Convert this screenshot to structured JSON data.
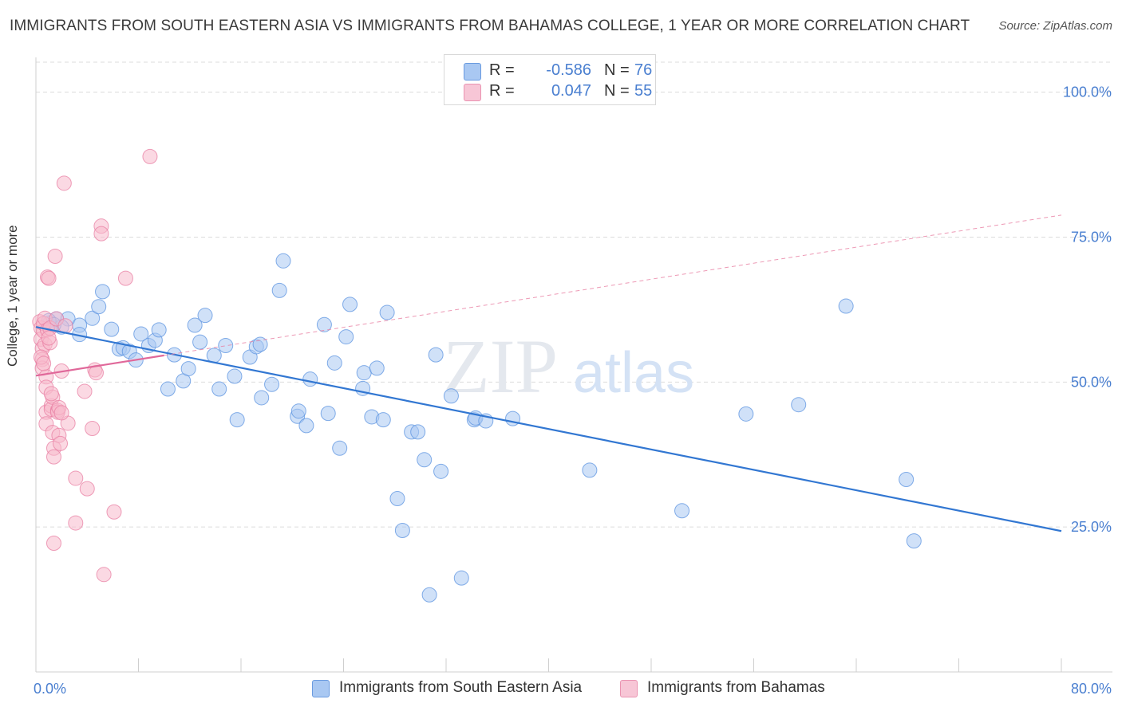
{
  "title": "IMMIGRANTS FROM SOUTH EASTERN ASIA VS IMMIGRANTS FROM BAHAMAS COLLEGE, 1 YEAR OR MORE CORRELATION CHART",
  "source": "Source: ZipAtlas.com",
  "watermark": {
    "zip": "ZIP",
    "atlas": "atlas"
  },
  "legend_top": {
    "rows": [
      {
        "r_label": "R =",
        "r_value": "-0.586",
        "n_label": "N =",
        "n_value": "76",
        "color": "#a9c8f2"
      },
      {
        "r_label": "R =",
        "r_value": "0.047",
        "n_label": "N =",
        "n_value": "55",
        "color": "#f7b9cc"
      }
    ]
  },
  "legend_bottom": [
    {
      "label": "Immigrants from South Eastern Asia",
      "color": "#a9c8f2"
    },
    {
      "label": "Immigrants from Bahamas",
      "color": "#f7b9cc"
    }
  ],
  "chart_data": {
    "type": "scatter",
    "title": "IMMIGRANTS FROM SOUTH EASTERN ASIA VS IMMIGRANTS FROM BAHAMAS COLLEGE, 1 YEAR OR MORE CORRELATION CHART",
    "xlabel": "",
    "ylabel": "College, 1 year or more",
    "xlim": [
      0,
      80
    ],
    "ylim": [
      0,
      106
    ],
    "x_tick_labels": [
      "0.0%",
      "80.0%"
    ],
    "y_ticks": [
      25,
      50,
      75,
      100
    ],
    "y_tick_labels": [
      "25.0%",
      "50.0%",
      "75.0%",
      "100.0%"
    ],
    "grid": true,
    "legend_placement": "top-center",
    "series": [
      {
        "name": "Immigrants from South Eastern Asia",
        "color": "#5b93e0",
        "fill": "#a9c8f2",
        "points": [
          [
            1.1,
            60.2
          ],
          [
            1.6,
            60.9
          ],
          [
            2.5,
            60.9
          ],
          [
            2.0,
            59.5
          ],
          [
            3.4,
            59.8
          ],
          [
            3.4,
            58.2
          ],
          [
            4.4,
            61.0
          ],
          [
            4.9,
            63.0
          ],
          [
            5.2,
            65.6
          ],
          [
            5.9,
            59.1
          ],
          [
            6.5,
            55.7
          ],
          [
            6.8,
            55.9
          ],
          [
            7.3,
            55.3
          ],
          [
            7.8,
            53.8
          ],
          [
            8.2,
            58.3
          ],
          [
            8.8,
            56.3
          ],
          [
            9.3,
            57.2
          ],
          [
            9.6,
            59.0
          ],
          [
            10.3,
            48.8
          ],
          [
            10.8,
            54.7
          ],
          [
            11.5,
            50.2
          ],
          [
            11.9,
            52.3
          ],
          [
            12.4,
            59.8
          ],
          [
            12.8,
            56.9
          ],
          [
            13.2,
            61.5
          ],
          [
            13.9,
            54.6
          ],
          [
            14.3,
            48.8
          ],
          [
            14.8,
            56.3
          ],
          [
            15.5,
            51.0
          ],
          [
            15.7,
            43.5
          ],
          [
            16.7,
            54.3
          ],
          [
            17.2,
            56.1
          ],
          [
            17.5,
            56.5
          ],
          [
            17.6,
            47.3
          ],
          [
            18.4,
            49.6
          ],
          [
            19.0,
            65.8
          ],
          [
            19.3,
            70.9
          ],
          [
            20.4,
            44.1
          ],
          [
            20.5,
            45.0
          ],
          [
            21.1,
            42.5
          ],
          [
            21.4,
            50.5
          ],
          [
            22.5,
            59.9
          ],
          [
            22.8,
            44.6
          ],
          [
            23.3,
            53.3
          ],
          [
            23.7,
            38.6
          ],
          [
            24.2,
            57.8
          ],
          [
            24.5,
            63.4
          ],
          [
            25.5,
            48.9
          ],
          [
            25.6,
            51.6
          ],
          [
            26.2,
            44.0
          ],
          [
            26.6,
            52.4
          ],
          [
            27.1,
            43.5
          ],
          [
            27.4,
            62.0
          ],
          [
            28.2,
            29.9
          ],
          [
            28.6,
            24.4
          ],
          [
            29.3,
            41.4
          ],
          [
            29.8,
            41.4
          ],
          [
            30.3,
            36.6
          ],
          [
            30.7,
            13.3
          ],
          [
            31.2,
            54.7
          ],
          [
            31.6,
            34.6
          ],
          [
            32.4,
            47.6
          ],
          [
            33.2,
            16.2
          ],
          [
            34.2,
            43.5
          ],
          [
            34.3,
            43.8
          ],
          [
            35.1,
            43.3
          ],
          [
            37.2,
            43.7
          ],
          [
            43.2,
            34.8
          ],
          [
            50.4,
            27.8
          ],
          [
            55.4,
            44.5
          ],
          [
            59.5,
            46.1
          ],
          [
            63.2,
            63.1
          ],
          [
            67.9,
            33.2
          ],
          [
            68.5,
            22.6
          ],
          [
            1.0,
            60.6
          ],
          [
            1.4,
            59.9
          ]
        ],
        "trend": {
          "x": [
            0,
            80
          ],
          "y": [
            59.5,
            24.3
          ]
        }
      },
      {
        "name": "Immigrants from Bahamas",
        "color": "#e87fa3",
        "fill": "#f7b9cc",
        "points": [
          [
            0.3,
            60.4
          ],
          [
            0.4,
            59.3
          ],
          [
            0.4,
            57.4
          ],
          [
            0.5,
            55.8
          ],
          [
            0.5,
            53.9
          ],
          [
            0.5,
            52.4
          ],
          [
            0.6,
            58.8
          ],
          [
            0.6,
            60.1
          ],
          [
            0.7,
            61.0
          ],
          [
            0.7,
            56.5
          ],
          [
            0.8,
            50.9
          ],
          [
            0.8,
            49.1
          ],
          [
            0.8,
            44.8
          ],
          [
            0.8,
            42.8
          ],
          [
            0.9,
            59.0
          ],
          [
            0.9,
            68.1
          ],
          [
            1.0,
            67.9
          ],
          [
            1.1,
            59.3
          ],
          [
            1.1,
            56.8
          ],
          [
            1.2,
            45.9
          ],
          [
            1.2,
            45.3
          ],
          [
            1.3,
            47.4
          ],
          [
            1.3,
            41.3
          ],
          [
            1.4,
            38.6
          ],
          [
            1.4,
            37.1
          ],
          [
            1.4,
            22.2
          ],
          [
            1.5,
            71.7
          ],
          [
            1.6,
            60.9
          ],
          [
            1.7,
            45.1
          ],
          [
            1.7,
            44.8
          ],
          [
            1.8,
            45.6
          ],
          [
            1.8,
            40.8
          ],
          [
            1.9,
            39.4
          ],
          [
            2.0,
            51.9
          ],
          [
            2.3,
            59.7
          ],
          [
            2.5,
            42.9
          ],
          [
            2.2,
            84.3
          ],
          [
            3.1,
            33.4
          ],
          [
            3.1,
            25.7
          ],
          [
            3.8,
            48.4
          ],
          [
            4.0,
            31.6
          ],
          [
            4.4,
            42.0
          ],
          [
            4.6,
            52.1
          ],
          [
            4.7,
            51.6
          ],
          [
            5.1,
            76.9
          ],
          [
            5.1,
            75.6
          ],
          [
            5.3,
            16.8
          ],
          [
            6.1,
            27.6
          ],
          [
            7.0,
            67.9
          ],
          [
            8.9,
            88.9
          ],
          [
            0.4,
            54.3
          ],
          [
            0.6,
            53.2
          ],
          [
            1.0,
            57.6
          ],
          [
            1.2,
            48.0
          ],
          [
            2.0,
            44.7
          ]
        ],
        "trend": {
          "x": [
            0,
            10
          ],
          "y": [
            51.1,
            54.6
          ]
        },
        "trend_extended": {
          "x": [
            10,
            80
          ],
          "y": [
            54.6,
            78.8
          ]
        }
      }
    ]
  }
}
